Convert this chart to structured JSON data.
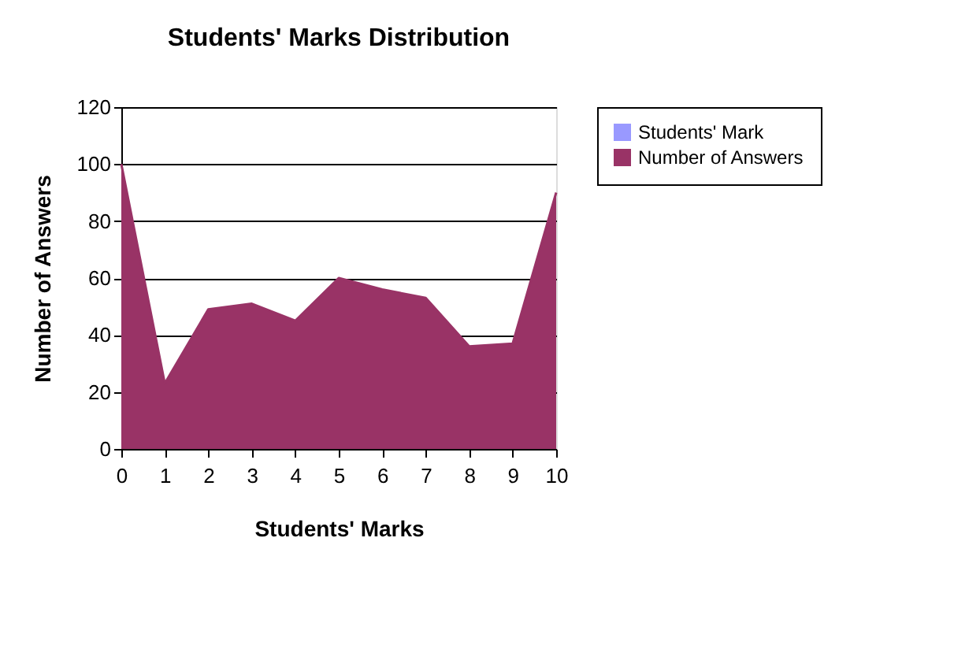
{
  "chart_data": {
    "type": "area",
    "title": "Students' Marks Distribution",
    "xlabel": "Students' Marks",
    "ylabel": "Number of Answers",
    "categories": [
      "0",
      "1",
      "2",
      "3",
      "4",
      "5",
      "6",
      "7",
      "8",
      "9",
      "10"
    ],
    "series": [
      {
        "name": "Students' Mark",
        "color": "#9999ff",
        "values": [
          null,
          null,
          null,
          null,
          null,
          null,
          null,
          null,
          null,
          null,
          null
        ]
      },
      {
        "name": "Number of Answers",
        "color": "#993366",
        "values": [
          100,
          23,
          49,
          51,
          45,
          60,
          56,
          53,
          36,
          37,
          90
        ]
      }
    ],
    "ylim": [
      0,
      120
    ],
    "yticks": [
      0,
      20,
      40,
      60,
      80,
      100,
      120
    ],
    "grid": "y",
    "legend": "right"
  }
}
